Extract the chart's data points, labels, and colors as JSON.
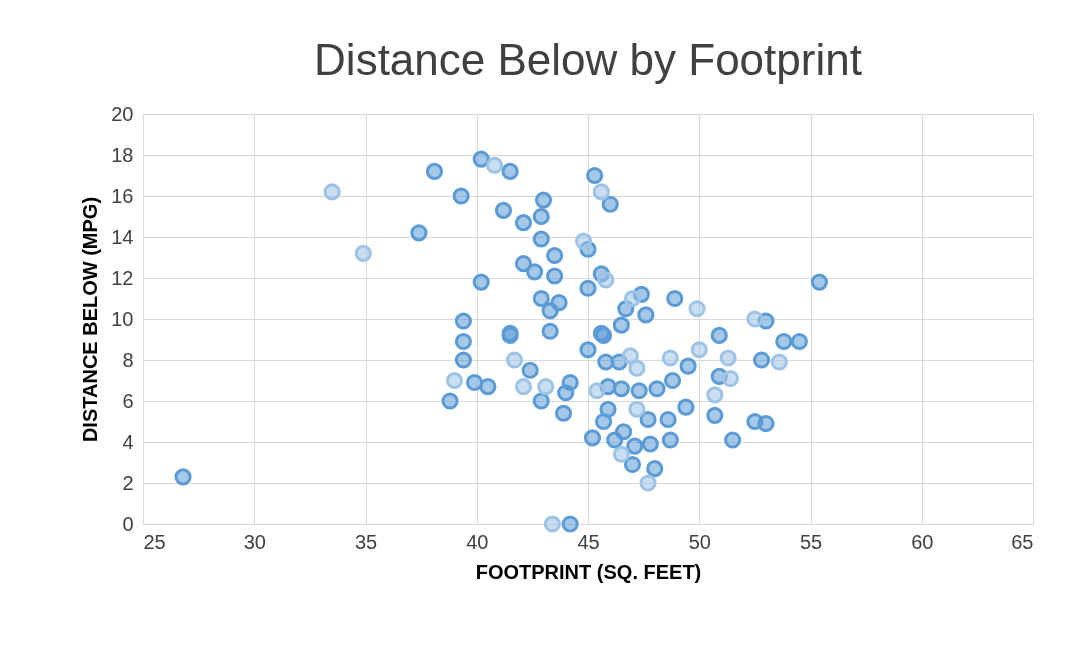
{
  "chart_data": {
    "type": "scatter",
    "title": "Distance Below by Footprint",
    "xlabel": "FOOTPRINT (SQ. FEET)",
    "ylabel": "DISTANCE BELOW (MPG)",
    "xlim": [
      25,
      65
    ],
    "xticks": [
      25,
      30,
      35,
      40,
      45,
      50,
      55,
      60,
      65
    ],
    "ylim": [
      0,
      20
    ],
    "yticks": [
      0,
      2,
      4,
      6,
      8,
      10,
      12,
      14,
      16,
      18,
      20
    ],
    "grid": true,
    "legend": false,
    "marker": "circle",
    "series": [
      {
        "color": "#5b9bd5",
        "x": [
          26.8,
          37.4,
          38.1,
          39.3,
          40.2,
          41.5,
          41.2,
          43.0,
          42.9,
          42.1,
          42.9,
          43.5,
          42.1,
          42.6,
          43.5,
          40.2,
          45.3,
          46.0,
          45.0,
          45.6,
          45.0,
          42.9,
          43.7,
          43.3,
          47.4,
          46.7,
          47.6,
          48.9,
          39.4,
          41.5,
          43.3,
          45.6,
          46.5,
          39.4,
          39.4,
          39.9,
          40.5,
          38.8,
          41.5,
          42.4,
          42.9,
          44.2,
          44.0,
          43.9,
          45.0,
          45.7,
          45.8,
          46.4,
          49.5,
          45.9,
          46.5,
          47.3,
          48.1,
          48.8,
          45.9,
          45.7,
          47.7,
          48.6,
          49.4,
          45.2,
          46.2,
          46.6,
          47.1,
          47.8,
          47.0,
          48.0,
          48.7,
          44.2,
          55.4,
          53.0,
          50.9,
          53.8,
          54.5,
          52.8,
          50.9,
          50.7,
          52.5,
          53.0,
          51.5
        ],
        "values": [
          2.3,
          14.2,
          17.2,
          16.0,
          17.8,
          17.2,
          15.3,
          15.8,
          15.0,
          14.7,
          13.9,
          13.1,
          12.7,
          12.3,
          12.1,
          11.8,
          17.0,
          15.6,
          13.4,
          12.2,
          11.5,
          11.0,
          10.8,
          10.4,
          11.2,
          10.5,
          10.2,
          11.0,
          9.9,
          9.3,
          9.4,
          9.3,
          9.7,
          8.9,
          8.0,
          6.9,
          6.7,
          6.0,
          9.2,
          7.5,
          6.0,
          6.9,
          6.4,
          5.4,
          8.5,
          9.2,
          7.9,
          7.9,
          7.7,
          6.7,
          6.6,
          6.5,
          6.6,
          7.0,
          5.6,
          5.0,
          5.1,
          5.1,
          5.7,
          4.2,
          4.1,
          4.5,
          3.8,
          3.9,
          2.9,
          2.7,
          4.1,
          0,
          11.8,
          9.9,
          9.2,
          8.9,
          8.9,
          8.0,
          7.2,
          5.3,
          5.0,
          4.9,
          4.1
        ]
      },
      {
        "color": "#9dc3e6",
        "x": [
          33.5,
          34.9,
          40.8,
          45.6,
          44.8,
          45.8,
          47.0,
          49.9,
          39.0,
          41.7,
          42.1,
          43.1,
          46.9,
          47.2,
          48.7,
          50.0,
          45.4,
          47.2,
          46.5,
          47.7,
          43.4,
          52.5,
          53.6,
          51.3,
          51.4,
          50.7
        ],
        "values": [
          16.2,
          13.2,
          17.5,
          16.2,
          13.8,
          11.9,
          11.0,
          10.5,
          7.0,
          8.0,
          6.7,
          6.7,
          8.2,
          7.6,
          8.1,
          8.5,
          6.5,
          5.6,
          3.4,
          2.0,
          0,
          10.0,
          7.9,
          8.1,
          7.1,
          6.3
        ]
      }
    ]
  }
}
